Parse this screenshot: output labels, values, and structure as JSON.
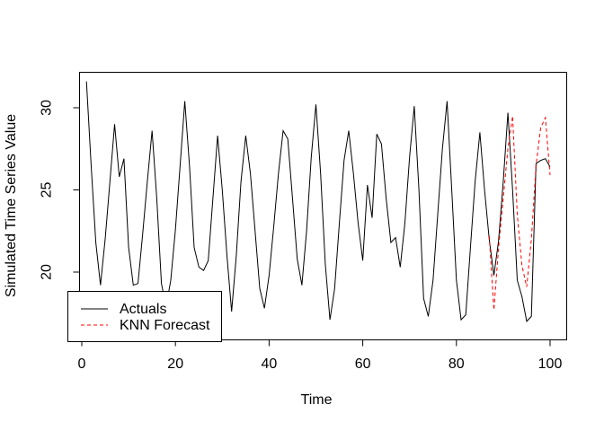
{
  "figure": {
    "background": "#ffffff",
    "plot_border_color": "#000000"
  },
  "chart_data": {
    "type": "line",
    "title": "",
    "xlabel": "Time",
    "ylabel": "Simulated Time Series Value",
    "xticks": [
      0,
      20,
      40,
      60,
      80,
      100
    ],
    "yticks": [
      20,
      25,
      30
    ],
    "xlim": [
      -3,
      104
    ],
    "ylim": [
      16.2,
      32.3
    ],
    "grid": false,
    "legend": {
      "position": "bottom-left",
      "entries": [
        {
          "label": "Actuals",
          "color": "#000000",
          "line_style": "solid"
        },
        {
          "label": "KNN Forecast",
          "color": "#ff0000",
          "line_style": "dashed"
        }
      ]
    },
    "series": [
      {
        "name": "Actuals",
        "color": "#000000",
        "line_style": "solid",
        "x": [
          1,
          2,
          3,
          4,
          5,
          6,
          7,
          8,
          9,
          10,
          11,
          12,
          13,
          14,
          15,
          16,
          17,
          18,
          19,
          20,
          21,
          22,
          23,
          24,
          25,
          26,
          27,
          28,
          29,
          30,
          31,
          32,
          33,
          34,
          35,
          36,
          37,
          38,
          39,
          40,
          41,
          42,
          43,
          44,
          45,
          46,
          47,
          48,
          49,
          50,
          51,
          52,
          53,
          54,
          55,
          56,
          57,
          58,
          59,
          60,
          61,
          62,
          63,
          64,
          65,
          66,
          67,
          68,
          69,
          70,
          71,
          72,
          73,
          74,
          75,
          76,
          77,
          78,
          79,
          80,
          81,
          82,
          83,
          84,
          85,
          86,
          87,
          88,
          89,
          90,
          91,
          92,
          93,
          94,
          95,
          96,
          97,
          98,
          99,
          100
        ],
        "values": [
          31.6,
          26.5,
          21.8,
          19.2,
          22.0,
          25.5,
          29.0,
          25.8,
          26.9,
          21.5,
          19.2,
          19.3,
          22.3,
          25.5,
          28.6,
          24.5,
          19.3,
          17.9,
          19.5,
          22.6,
          26.5,
          30.4,
          26.5,
          21.5,
          20.3,
          20.1,
          20.7,
          24.5,
          28.3,
          25.0,
          21.0,
          17.6,
          21.0,
          25.5,
          28.3,
          26.0,
          22.5,
          19.0,
          17.8,
          19.8,
          22.8,
          26.0,
          28.6,
          28.1,
          24.5,
          20.8,
          19.2,
          22.5,
          27.0,
          30.2,
          26.0,
          20.5,
          17.1,
          19.0,
          23.0,
          26.8,
          28.6,
          26.0,
          23.0,
          20.7,
          25.3,
          23.3,
          28.4,
          27.8,
          24.5,
          21.8,
          22.1,
          20.3,
          23.0,
          27.0,
          30.1,
          25.0,
          18.4,
          17.3,
          19.5,
          23.5,
          27.5,
          30.4,
          25.0,
          19.5,
          17.1,
          17.4,
          21.5,
          25.5,
          28.5,
          25.0,
          22.0,
          19.8,
          21.9,
          25.5,
          29.7,
          25.0,
          19.5,
          18.5,
          17.0,
          17.3,
          26.6,
          26.8,
          26.9,
          26.4
        ]
      },
      {
        "name": "KNN Forecast",
        "color": "#ff0000",
        "line_style": "dashed",
        "x": [
          87,
          88,
          89,
          90,
          91,
          92,
          93,
          94,
          95,
          96,
          97,
          98,
          99,
          100
        ],
        "values": [
          22.2,
          17.7,
          21.5,
          24.5,
          27.5,
          29.5,
          23.5,
          20.4,
          19.1,
          22.0,
          26.5,
          28.8,
          29.4,
          25.9
        ]
      }
    ]
  }
}
